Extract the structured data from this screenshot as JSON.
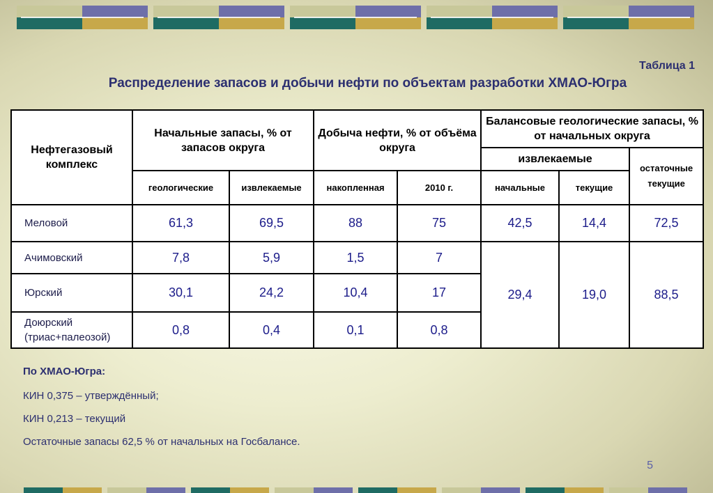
{
  "slide": {
    "table_number": "Таблица 1",
    "title": "Распределение запасов и добычи нефти по объектам разработки ХМАО-Югра",
    "page_number": "5"
  },
  "table": {
    "h_complex": "Нефтегазовый комплекс",
    "h_initial": "Начальные запасы, % от запасов округа",
    "h_production": "Добыча нефти, % от объёма округа",
    "h_balance": "Балансовые геологические запасы, % от начальных округа",
    "h_recoverable": "извлекаемые",
    "h_residual": "остаточные текущие",
    "sub_geological": "геологические",
    "sub_recoverable": "извлекаемые",
    "sub_cumulative": "накопленная",
    "sub_2010": "2010 г.",
    "sub_initial": "начальные",
    "sub_current": "текущие",
    "rows": [
      {
        "name": "Меловой",
        "geo": "61,3",
        "rec": "69,5",
        "cum": "88",
        "y2010": "75",
        "b_init": "42,5",
        "b_cur": "14,4",
        "b_res": "72,5"
      },
      {
        "name": "Ачимовский",
        "geo": "7,8",
        "rec": "5,9",
        "cum": "1,5",
        "y2010": "7"
      },
      {
        "name": "Юрский",
        "geo": "30,1",
        "rec": "24,2",
        "cum": "10,4",
        "y2010": "17"
      },
      {
        "name": "Доюрский (триас+палеозой)",
        "geo": "0,8",
        "rec": "0,4",
        "cum": "0,1",
        "y2010": "0,8"
      }
    ],
    "merged": {
      "b_init": "29,4",
      "b_cur": "19,0",
      "b_res": "88,5"
    }
  },
  "notes": {
    "title": "По ХМАО-Югра:",
    "line1": "КИН  0,375 – утверждённый;",
    "line2": "КИН 0,213 – текущий",
    "line3": "Остаточные запасы 62,5 % от начальных на Госбалансе."
  },
  "colors": {
    "title": "#2c2f70",
    "band_olive": "#c8c89a",
    "band_purple": "#6e6fa9",
    "band_teal": "#1f6b63",
    "band_gold": "#c7a84a"
  }
}
